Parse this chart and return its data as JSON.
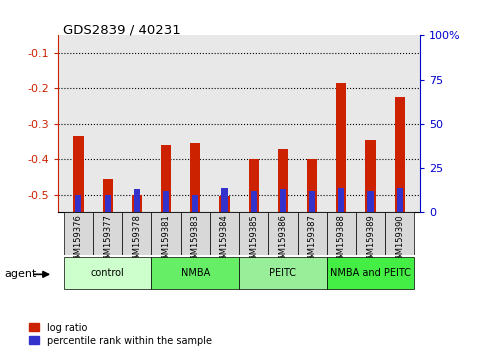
{
  "title": "GDS2839 / 40231",
  "samples": [
    "GSM159376",
    "GSM159377",
    "GSM159378",
    "GSM159381",
    "GSM159383",
    "GSM159384",
    "GSM159385",
    "GSM159386",
    "GSM159387",
    "GSM159388",
    "GSM159389",
    "GSM159390"
  ],
  "log_ratio": [
    -0.335,
    -0.455,
    -0.5,
    -0.36,
    -0.355,
    -0.503,
    -0.4,
    -0.37,
    -0.4,
    -0.185,
    -0.345,
    -0.225
  ],
  "percentile_rank": [
    10,
    10,
    13,
    12,
    10,
    14,
    12,
    13,
    12,
    14,
    12,
    14
  ],
  "groups": [
    {
      "label": "control",
      "start": 0,
      "end": 3
    },
    {
      "label": "NMBA",
      "start": 3,
      "end": 6
    },
    {
      "label": "PEITC",
      "start": 6,
      "end": 9
    },
    {
      "label": "NMBA and PEITC",
      "start": 9,
      "end": 12
    }
  ],
  "group_colors": [
    "#ccffcc",
    "#66ee66",
    "#99ee99",
    "#44ee44"
  ],
  "ylim_left": [
    -0.55,
    -0.05
  ],
  "ylim_right": [
    0,
    100
  ],
  "left_ticks": [
    -0.5,
    -0.4,
    -0.3,
    -0.2,
    -0.1
  ],
  "right_ticks": [
    0,
    25,
    50,
    75,
    100
  ],
  "bar_color_red": "#cc2200",
  "bar_color_blue": "#3333cc",
  "plot_bg_color": "#e8e8e8",
  "left_tick_color": "#cc2200",
  "right_tick_color": "#0000cc",
  "bar_width": 0.35
}
